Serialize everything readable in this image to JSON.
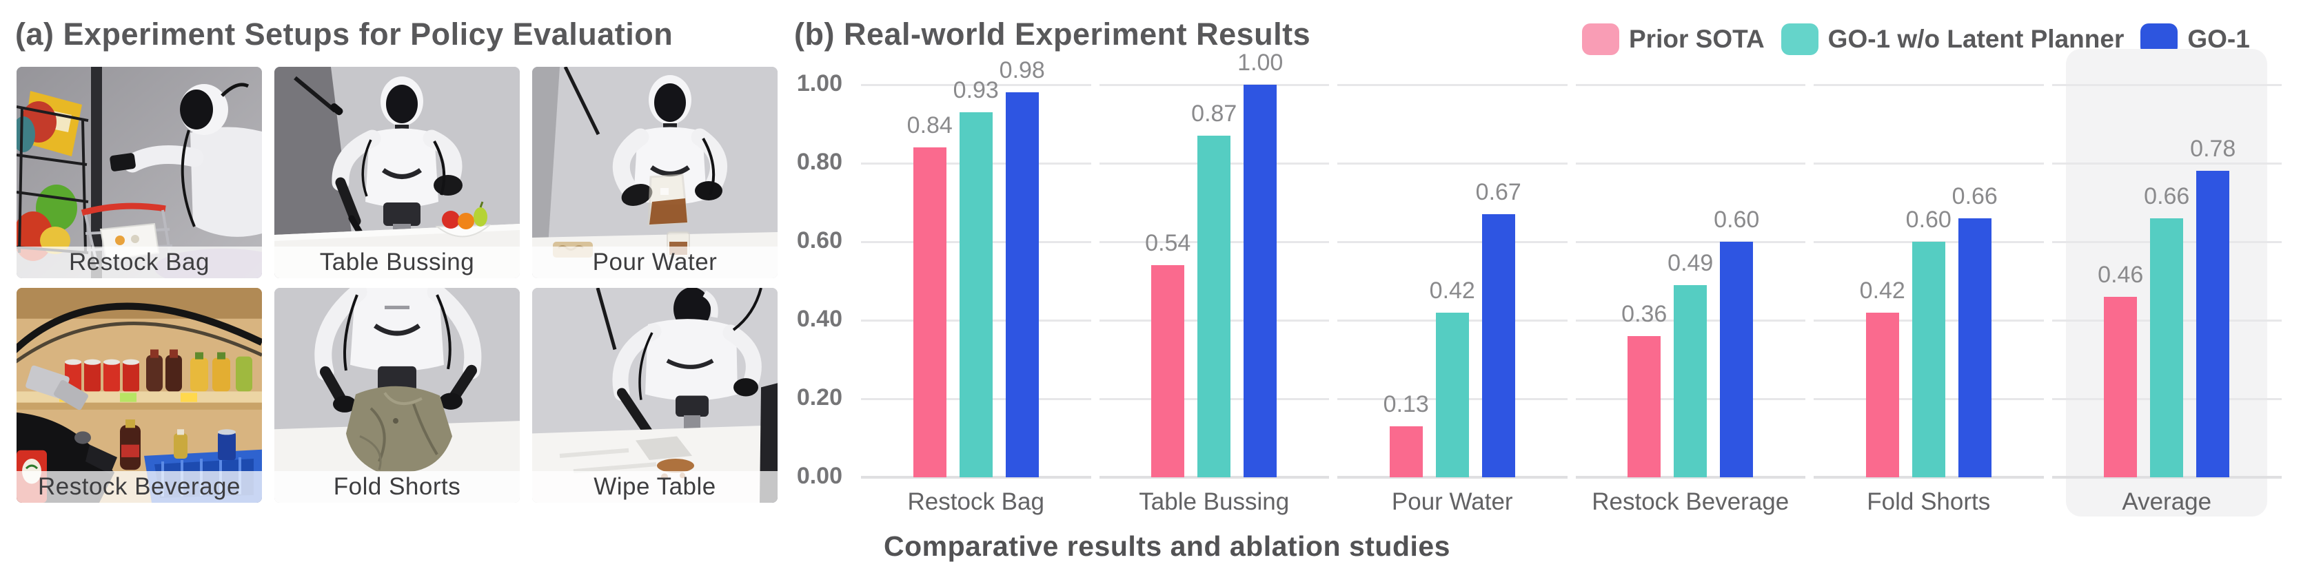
{
  "panel_a": {
    "title": "(a) Experiment Setups for Policy Evaluation",
    "tiles": [
      {
        "label": "Restock Bag"
      },
      {
        "label": "Table Bussing"
      },
      {
        "label": "Pour Water"
      },
      {
        "label": "Restock Beverage"
      },
      {
        "label": "Fold Shorts"
      },
      {
        "label": "Wipe Table"
      }
    ]
  },
  "panel_b": {
    "title": "(b) Real-world Experiment Results",
    "caption": "Comparative results and ablation studies",
    "legend": [
      {
        "label": "Prior SOTA",
        "swatch_color": "#F99DB5"
      },
      {
        "label": "GO-1 w/o Latent Planner",
        "swatch_color": "#65D4CA"
      },
      {
        "label": "GO-1",
        "swatch_color": "#2D55DF"
      }
    ]
  },
  "chart_data": {
    "type": "bar",
    "title": "(b) Real-world Experiment Results",
    "categories": [
      "Restock Bag",
      "Table Bussing",
      "Pour Water",
      "Restock Beverage",
      "Fold Shorts",
      "Average"
    ],
    "series": [
      {
        "name": "Prior SOTA",
        "color": "#FA6A8E",
        "values": [
          0.84,
          0.54,
          0.13,
          0.36,
          0.42,
          0.46
        ]
      },
      {
        "name": "GO-1 w/o Latent Planner",
        "color": "#55CDC2",
        "values": [
          0.93,
          0.87,
          0.42,
          0.49,
          0.6,
          0.66
        ]
      },
      {
        "name": "GO-1",
        "color": "#2E55E2",
        "values": [
          0.98,
          1.0,
          0.67,
          0.6,
          0.66,
          0.78
        ]
      }
    ],
    "ylim": [
      0,
      1.0
    ],
    "yticks": [
      0.0,
      0.2,
      0.4,
      0.6,
      0.8,
      1.0
    ],
    "ytick_labels": [
      "0.00",
      "0.20",
      "0.40",
      "0.60",
      "0.80",
      "1.00"
    ],
    "grid": true,
    "legend_position": "top-right",
    "highlight_category": "Average",
    "value_label_format": "2dp",
    "caption": "Comparative results and ablation studies"
  }
}
